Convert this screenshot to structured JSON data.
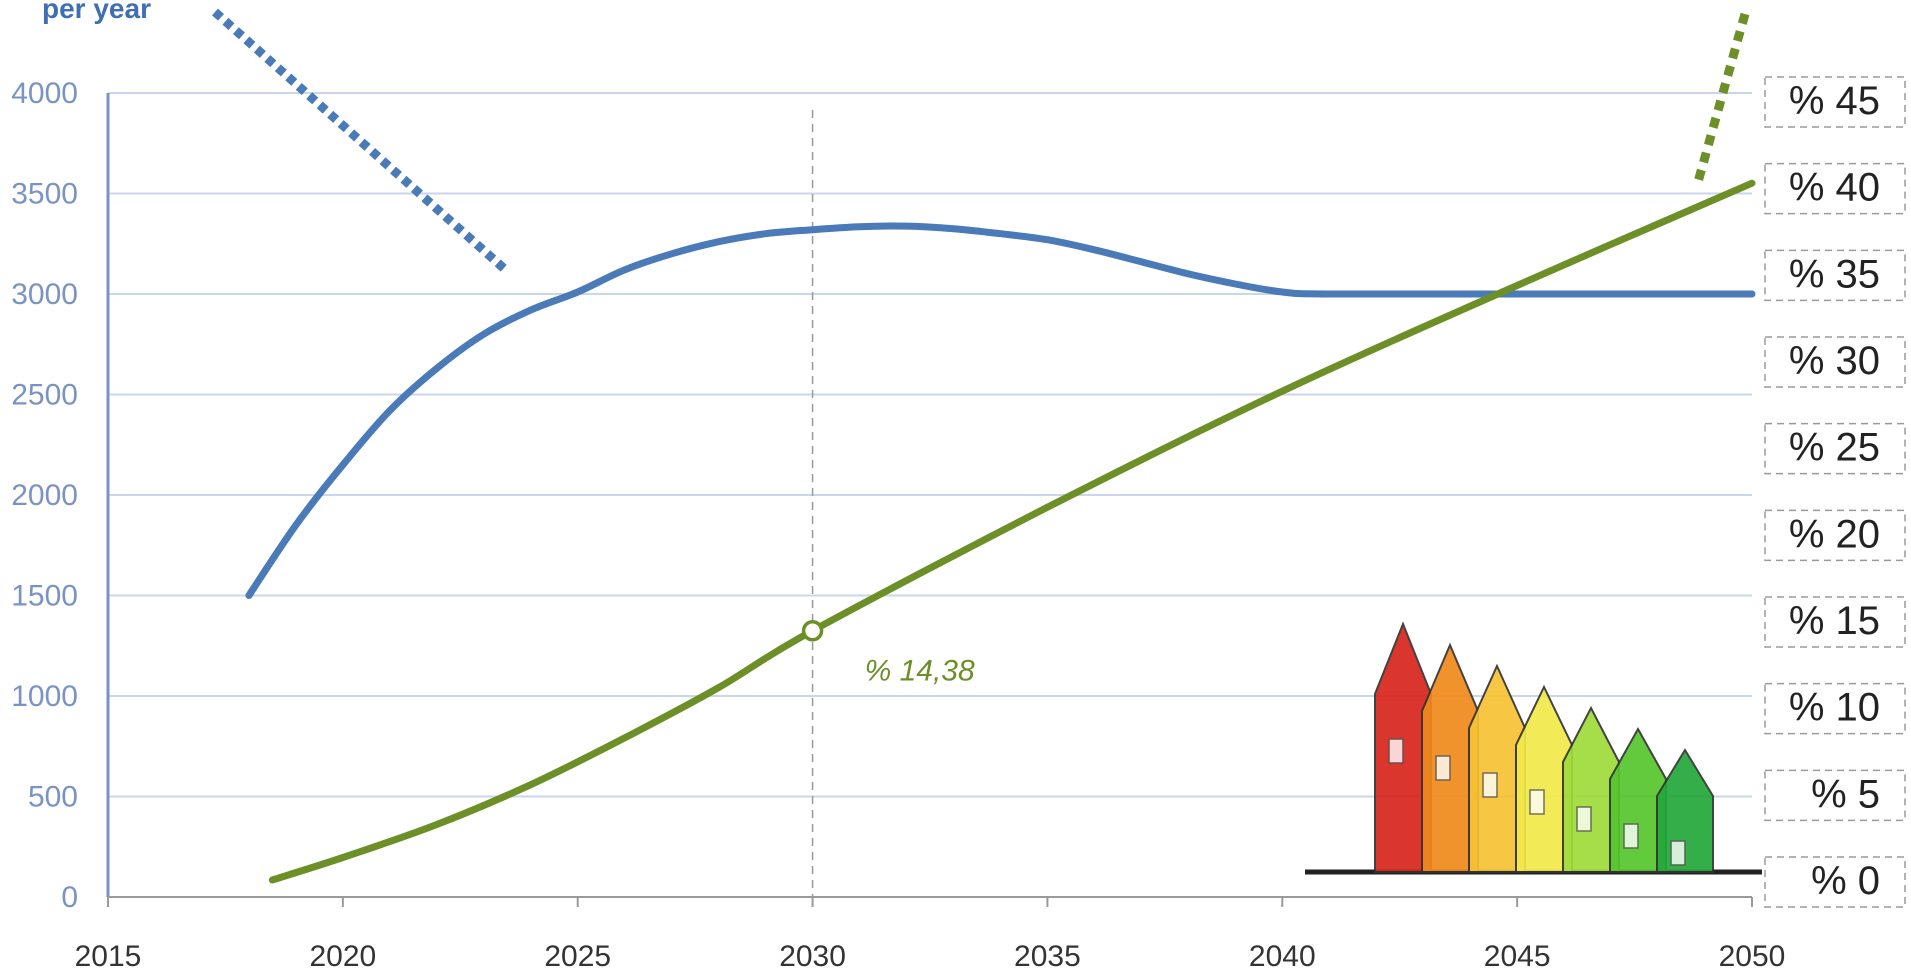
{
  "chart_data": {
    "type": "line",
    "x_range": [
      2015,
      2050
    ],
    "x_ticks": [
      "2015",
      "2020",
      "2025",
      "2030",
      "2035",
      "2040",
      "2045",
      "2050"
    ],
    "y_left_range": [
      0,
      4000
    ],
    "y_left_ticks": [
      "0",
      "500",
      "1000",
      "1500",
      "2000",
      "2500",
      "3000",
      "3500",
      "4000"
    ],
    "y_right_range": [
      0,
      45
    ],
    "y_right_ticks": [
      "% 0",
      "% 5",
      "% 10",
      "% 15",
      "% 20",
      "% 25",
      "% 30",
      "% 35",
      "% 40",
      "% 45"
    ],
    "corner_label": "per year",
    "grid": true,
    "reference_line_x": 2030,
    "series": [
      {
        "axis": "left",
        "color": "#4a7ab8",
        "points": [
          [
            2018,
            1500
          ],
          [
            2019,
            1850
          ],
          [
            2020,
            2150
          ],
          [
            2021,
            2420
          ],
          [
            2022,
            2630
          ],
          [
            2023,
            2800
          ],
          [
            2024,
            2920
          ],
          [
            2025,
            3010
          ],
          [
            2026,
            3120
          ],
          [
            2027,
            3200
          ],
          [
            2028,
            3260
          ],
          [
            2029,
            3300
          ],
          [
            2030,
            3320
          ],
          [
            2031,
            3335
          ],
          [
            2032,
            3338
          ],
          [
            2033,
            3325
          ],
          [
            2034,
            3300
          ],
          [
            2035,
            3270
          ],
          [
            2036,
            3220
          ],
          [
            2037,
            3160
          ],
          [
            2038,
            3100
          ],
          [
            2039,
            3050
          ],
          [
            2040,
            3010
          ],
          [
            2041,
            3000
          ],
          [
            2045,
            3000
          ],
          [
            2050,
            3000
          ]
        ]
      },
      {
        "axis": "right",
        "color": "#6d8f27",
        "points": [
          [
            2018.5,
            0
          ],
          [
            2020,
            1.3
          ],
          [
            2022,
            3.2
          ],
          [
            2024,
            5.5
          ],
          [
            2026,
            8.2
          ],
          [
            2028,
            11.1
          ],
          [
            2030,
            14.38
          ],
          [
            2035,
            21.5
          ],
          [
            2040,
            28.2
          ],
          [
            2045,
            34.3
          ],
          [
            2050,
            40.2
          ]
        ]
      }
    ],
    "annotations": [
      {
        "label": "% 14,38",
        "x": 2030,
        "y_right": 14.38
      }
    ]
  },
  "decorations": {
    "blue_pointer_color": "#4a7ab8",
    "green_pointer_color": "#6d8f27",
    "house_icon": "energy-rating-houses-icon",
    "house_colors": [
      "#d9261c",
      "#f08a1c",
      "#f7c233",
      "#f2e94a",
      "#9fdc3b",
      "#55c62c",
      "#22a83a"
    ]
  }
}
